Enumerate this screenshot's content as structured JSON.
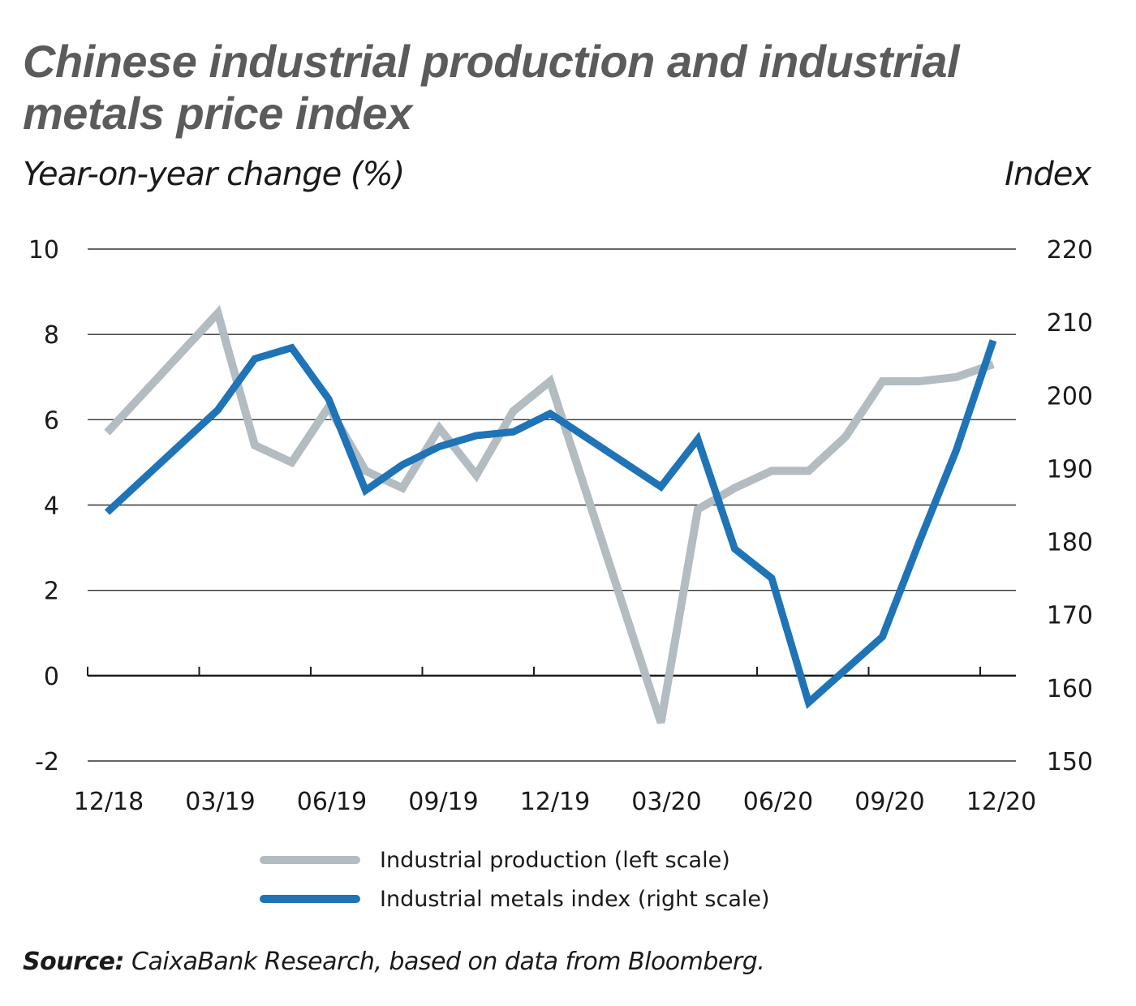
{
  "title": "Chinese industrial production and industrial metals price index",
  "source_label": "Source:",
  "source_text": "CaixaBank Research, based on data from Bloomberg.",
  "chart_data": {
    "type": "line",
    "left_axis_label": "Year-on-year change (%)",
    "right_axis_label": "Index",
    "left_ylim": [
      -2,
      10
    ],
    "right_ylim": [
      150,
      220
    ],
    "left_ticks": [
      10,
      8,
      6,
      4,
      2,
      0,
      -2
    ],
    "right_ticks": [
      220,
      210,
      200,
      190,
      180,
      170,
      160,
      150
    ],
    "x_tick_labels": [
      "12/18",
      "03/19",
      "06/19",
      "09/19",
      "12/19",
      "03/20",
      "06/20",
      "09/20",
      "12/20"
    ],
    "x": [
      "12/18",
      "01/19",
      "02/19",
      "03/19",
      "04/19",
      "05/19",
      "06/19",
      "07/19",
      "08/19",
      "09/19",
      "10/19",
      "11/19",
      "12/19",
      "01/20",
      "02/20",
      "03/20",
      "04/20",
      "05/20",
      "06/20",
      "07/20",
      "08/20",
      "09/20",
      "10/20",
      "11/20",
      "12/20"
    ],
    "grid": true,
    "legend_position": "bottom",
    "series": [
      {
        "name": "Industrial production (left scale)",
        "axis": "left",
        "color": "#b3bcc1",
        "values": [
          5.7,
          null,
          null,
          8.5,
          5.4,
          5.0,
          6.3,
          4.8,
          4.4,
          5.8,
          4.7,
          6.2,
          6.9,
          null,
          null,
          -1.1,
          3.9,
          4.4,
          4.8,
          4.8,
          5.6,
          6.9,
          6.9,
          7.0,
          7.3
        ]
      },
      {
        "name": "Industrial metals index (right scale)",
        "axis": "right",
        "color": "#1f73b7",
        "values": [
          184,
          null,
          null,
          198,
          205,
          206.5,
          199.5,
          187,
          190.5,
          193,
          194.5,
          195,
          197.5,
          null,
          null,
          187.5,
          194,
          179,
          175,
          158,
          null,
          167,
          180,
          192.5,
          207.5
        ]
      }
    ]
  }
}
